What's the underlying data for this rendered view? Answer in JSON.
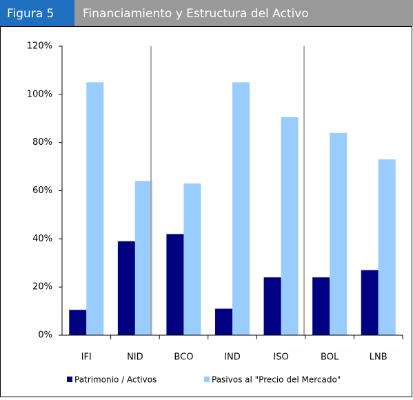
{
  "header": {
    "label": "Figura 5",
    "title": "Financiamiento y Estructura del Activo"
  },
  "chart_data": {
    "type": "bar",
    "categories": [
      "IFI",
      "NID",
      "BCO",
      "IND",
      "ISO",
      "BOL",
      "LNB"
    ],
    "series": [
      {
        "name": "Patrimonio / Activos",
        "color": "#000080",
        "values": [
          10.5,
          39,
          42,
          11,
          24,
          24,
          27
        ]
      },
      {
        "name": "Pasivos al \"Precio del Mercado\"",
        "color": "#99ccff",
        "values": [
          105,
          64,
          63,
          105,
          90.5,
          84,
          73
        ]
      }
    ],
    "ylim": [
      0,
      120
    ],
    "yticks": [
      {
        "value": 0,
        "label": "0%"
      },
      {
        "value": 20,
        "label": "20%"
      },
      {
        "value": 40,
        "label": "40%"
      },
      {
        "value": 60,
        "label": "60%"
      },
      {
        "value": 80,
        "label": "80%"
      },
      {
        "value": 100,
        "label": "100%"
      },
      {
        "value": 120,
        "label": "120%"
      }
    ],
    "grid": false
  }
}
